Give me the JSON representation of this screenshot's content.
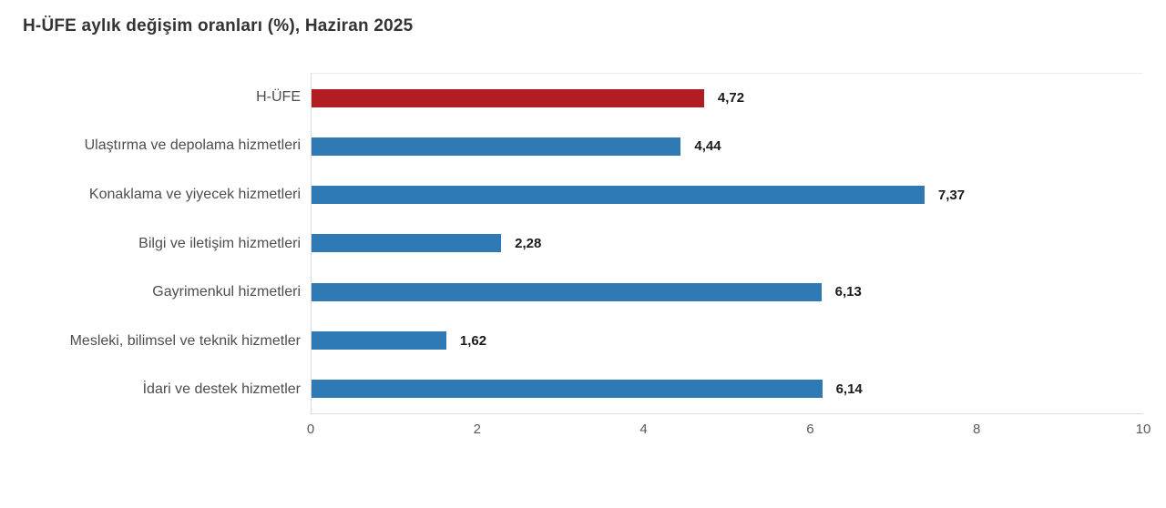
{
  "title": "H-ÜFE aylık değişim oranları (%), Haziran 2025",
  "colors": {
    "highlight_bar": "#b01d23",
    "bar": "#2f7ab4",
    "category_label": "#4d4d4d",
    "value_label": "#1a1a1a",
    "axis_line": "#d9d9d9",
    "tick_label": "#595959",
    "title": "#333333"
  },
  "chart_data": {
    "type": "bar",
    "orientation": "horizontal",
    "title": "H-ÜFE aylık değişim oranları (%), Haziran 2025",
    "categories": [
      "H-ÜFE",
      "Ulaştırma ve depolama hizmetleri",
      "Konaklama ve yiyecek hizmetleri",
      "Bilgi ve iletişim hizmetleri",
      "Gayrimenkul hizmetleri",
      "Mesleki, bilimsel ve teknik hizmetler",
      "İdari ve destek hizmetler"
    ],
    "values": [
      4.72,
      4.44,
      7.37,
      2.28,
      6.13,
      1.62,
      6.14
    ],
    "value_labels": [
      "4,72",
      "4,44",
      "7,37",
      "2,28",
      "6,13",
      "1,62",
      "6,14"
    ],
    "highlight_index": 0,
    "xlim": [
      0,
      10
    ],
    "x_ticks": [
      "0",
      "2",
      "4",
      "6",
      "8",
      "10"
    ],
    "xlabel": "",
    "ylabel": "",
    "grid": false,
    "legend": "none"
  }
}
